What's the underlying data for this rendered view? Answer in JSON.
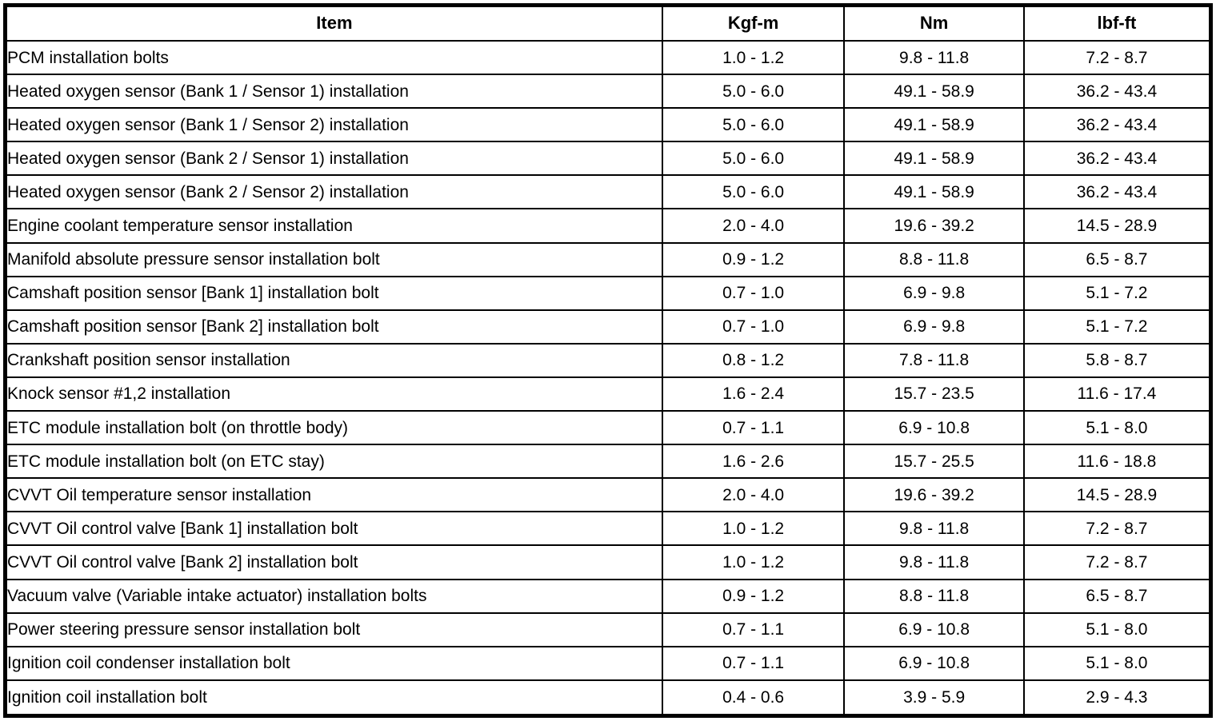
{
  "table": {
    "columns": {
      "item": "Item",
      "kgf_m": "Kgf-m",
      "nm": "Nm",
      "lbf_ft": "lbf-ft"
    },
    "rows": [
      {
        "item": "PCM installation bolts",
        "kgf_m": "1.0 - 1.2",
        "nm": "9.8 - 11.8",
        "lbf_ft": "7.2 - 8.7"
      },
      {
        "item": "Heated oxygen sensor (Bank 1 / Sensor 1) installation",
        "kgf_m": "5.0 - 6.0",
        "nm": "49.1 - 58.9",
        "lbf_ft": "36.2 - 43.4"
      },
      {
        "item": "Heated oxygen sensor (Bank 1 / Sensor 2) installation",
        "kgf_m": "5.0 - 6.0",
        "nm": "49.1 - 58.9",
        "lbf_ft": "36.2 - 43.4"
      },
      {
        "item": "Heated oxygen sensor (Bank 2 / Sensor 1) installation",
        "kgf_m": "5.0 - 6.0",
        "nm": "49.1 - 58.9",
        "lbf_ft": "36.2 - 43.4"
      },
      {
        "item": "Heated oxygen sensor (Bank 2 / Sensor 2) installation",
        "kgf_m": "5.0 - 6.0",
        "nm": "49.1 - 58.9",
        "lbf_ft": "36.2 - 43.4"
      },
      {
        "item": "Engine coolant temperature sensor installation",
        "kgf_m": "2.0 - 4.0",
        "nm": "19.6 - 39.2",
        "lbf_ft": "14.5 - 28.9"
      },
      {
        "item": "Manifold absolute pressure sensor installation bolt",
        "kgf_m": "0.9 - 1.2",
        "nm": "8.8 - 11.8",
        "lbf_ft": "6.5 - 8.7"
      },
      {
        "item": "Camshaft position sensor [Bank 1] installation bolt",
        "kgf_m": "0.7 - 1.0",
        "nm": "6.9 - 9.8",
        "lbf_ft": "5.1 - 7.2"
      },
      {
        "item": "Camshaft position sensor [Bank 2] installation bolt",
        "kgf_m": "0.7 - 1.0",
        "nm": "6.9 - 9.8",
        "lbf_ft": "5.1 - 7.2"
      },
      {
        "item": "Crankshaft position sensor installation",
        "kgf_m": "0.8 - 1.2",
        "nm": "7.8 - 11.8",
        "lbf_ft": "5.8 - 8.7"
      },
      {
        "item": "Knock sensor #1,2 installation",
        "kgf_m": "1.6 - 2.4",
        "nm": "15.7 - 23.5",
        "lbf_ft": "11.6 - 17.4"
      },
      {
        "item": "ETC module installation bolt (on throttle body)",
        "kgf_m": "0.7 - 1.1",
        "nm": "6.9 - 10.8",
        "lbf_ft": "5.1 - 8.0"
      },
      {
        "item": "ETC module installation bolt (on ETC stay)",
        "kgf_m": "1.6 - 2.6",
        "nm": "15.7 - 25.5",
        "lbf_ft": "11.6 - 18.8"
      },
      {
        "item": "CVVT Oil temperature sensor installation",
        "kgf_m": "2.0 - 4.0",
        "nm": "19.6 - 39.2",
        "lbf_ft": "14.5 - 28.9"
      },
      {
        "item": "CVVT Oil control valve [Bank 1] installation bolt",
        "kgf_m": "1.0 - 1.2",
        "nm": "9.8 - 11.8",
        "lbf_ft": "7.2 - 8.7"
      },
      {
        "item": "CVVT Oil control valve [Bank 2] installation bolt",
        "kgf_m": "1.0 - 1.2",
        "nm": "9.8 - 11.8",
        "lbf_ft": "7.2 - 8.7"
      },
      {
        "item": "Vacuum valve (Variable intake actuator) installation bolts",
        "kgf_m": "0.9 - 1.2",
        "nm": "8.8 - 11.8",
        "lbf_ft": "6.5 - 8.7"
      },
      {
        "item": "Power steering pressure sensor installation bolt",
        "kgf_m": "0.7 - 1.1",
        "nm": "6.9 - 10.8",
        "lbf_ft": "5.1 - 8.0"
      },
      {
        "item": "Ignition coil condenser installation bolt",
        "kgf_m": "0.7 - 1.1",
        "nm": "6.9 - 10.8",
        "lbf_ft": "5.1 - 8.0"
      },
      {
        "item": "Ignition coil installation bolt",
        "kgf_m": "0.4 - 0.6",
        "nm": "3.9 - 5.9",
        "lbf_ft": "2.9 - 4.3"
      }
    ]
  }
}
